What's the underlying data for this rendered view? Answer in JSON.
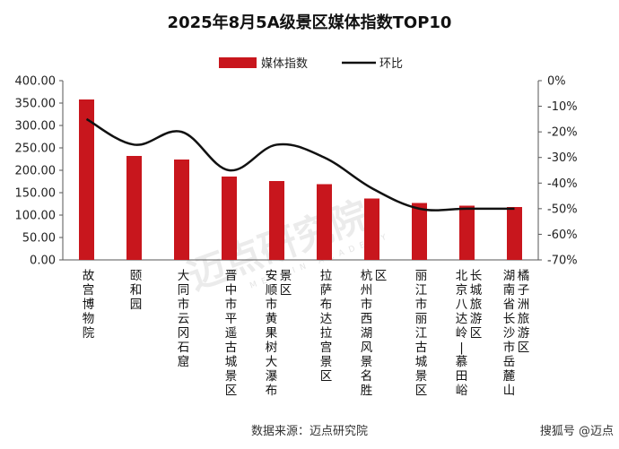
{
  "chart_data": {
    "type": "bar",
    "title": "2025年8月5A级景区媒体指数TOP10",
    "categories": [
      "故宫博物院",
      "颐和园",
      "大同市云冈石窟",
      "晋中市平遥古城景区",
      "安顺市黄果树大瀑布景区",
      "拉萨布达拉宫景区",
      "杭州市西湖风景名胜区",
      "丽江市丽江古城景区",
      "北京八达岭－慕田峪长城旅游区",
      "湖南省长沙市岳麓山橘子洲旅游区"
    ],
    "series": [
      {
        "name": "媒体指数",
        "type": "bar",
        "axis": "left",
        "color": "#c8161d",
        "values": [
          358,
          232,
          224,
          186,
          176,
          169,
          137,
          127,
          121,
          118
        ]
      },
      {
        "name": "环比",
        "type": "line",
        "axis": "right",
        "color": "#111111",
        "values": [
          -15,
          -25,
          -20,
          -35,
          -25,
          -30,
          -42,
          -50,
          -50,
          -50
        ]
      }
    ],
    "y_left": {
      "min": 0,
      "max": 400,
      "step": 50,
      "ticks": [
        "0.00",
        "50.00",
        "100.00",
        "150.00",
        "200.00",
        "250.00",
        "300.00",
        "350.00",
        "400.00"
      ]
    },
    "y_right": {
      "min": -70,
      "max": 0,
      "step": 10,
      "ticks": [
        "-70%",
        "-60%",
        "-50%",
        "-40%",
        "-30%",
        "-20%",
        "-10%",
        "0%"
      ]
    },
    "legend_position": "top-center",
    "grid": false
  },
  "source_label": "数据来源：迈点研究院",
  "watermark": {
    "main": "迈点研究院",
    "sub": "MEADIN ACADEMY"
  },
  "footer_brand": "搜狐号 @迈点"
}
